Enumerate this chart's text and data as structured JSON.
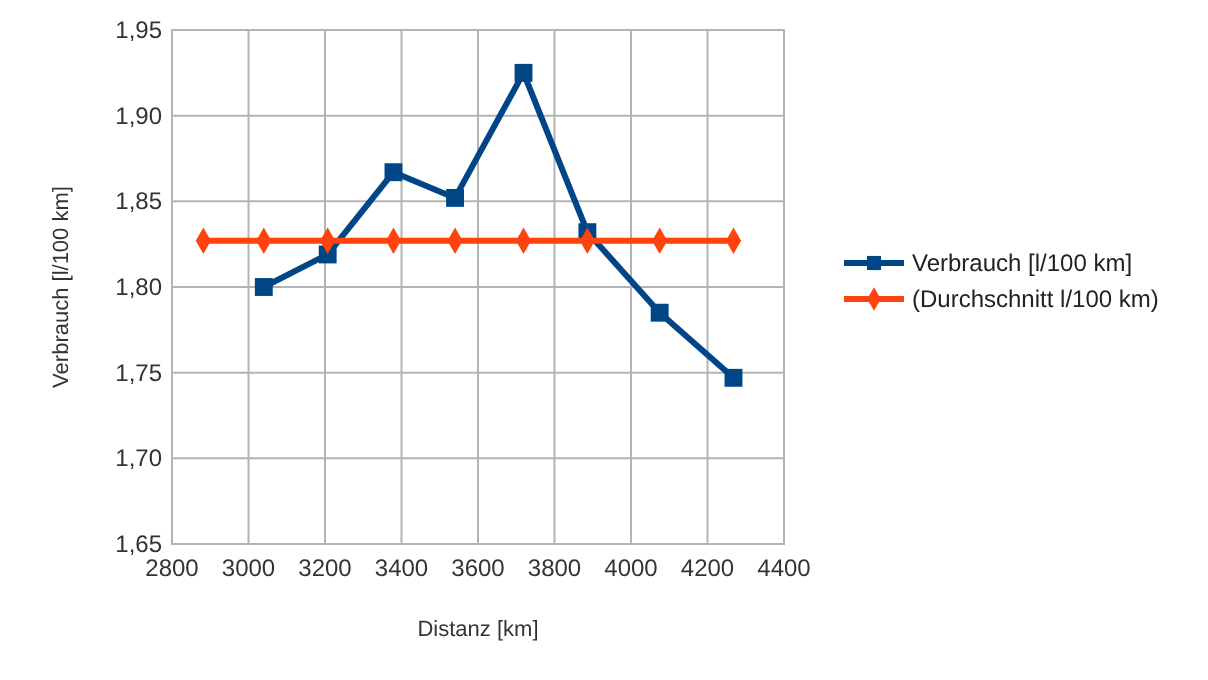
{
  "chart_data": {
    "type": "line",
    "xlabel": "Distanz [km]",
    "ylabel": "Verbrauch [l/100 km]",
    "xlim": [
      2800,
      4400
    ],
    "xticks": [
      2800,
      3000,
      3200,
      3400,
      3600,
      3800,
      4000,
      4200,
      4400
    ],
    "ylim": [
      1.65,
      1.95
    ],
    "yticks": [
      {
        "value": 1.65,
        "label": "1,65"
      },
      {
        "value": 1.7,
        "label": "1,70"
      },
      {
        "value": 1.75,
        "label": "1,75"
      },
      {
        "value": 1.8,
        "label": "1,80"
      },
      {
        "value": 1.85,
        "label": "1,85"
      },
      {
        "value": 1.9,
        "label": "1,90"
      },
      {
        "value": 1.95,
        "label": "1,95"
      }
    ],
    "grid": true,
    "legend": "right",
    "line_style": "solid",
    "series": [
      {
        "name": "Verbrauch [l/100 km]",
        "color": "#004586",
        "marker": "square",
        "x": [
          3040,
          3207,
          3379,
          3540,
          3719,
          3886,
          4075,
          4268
        ],
        "values": [
          1.8,
          1.819,
          1.867,
          1.852,
          1.925,
          1.832,
          1.785,
          1.747
        ]
      },
      {
        "name": "(Durchschnitt l/100 km)",
        "color": "#ff420e",
        "marker": "diamond",
        "x": [
          2882,
          3040,
          3207,
          3379,
          3540,
          3719,
          3886,
          4075,
          4268
        ],
        "values": [
          1.827,
          1.827,
          1.827,
          1.827,
          1.827,
          1.827,
          1.827,
          1.827,
          1.827
        ]
      }
    ]
  }
}
